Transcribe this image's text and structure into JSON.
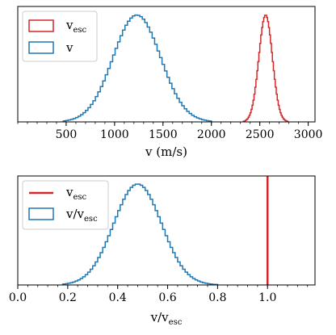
{
  "chart_data": [
    {
      "type": "histogram",
      "xlabel": "v (m/s)",
      "xlim": [
        0,
        3070
      ],
      "ylim": [
        0,
        1.08
      ],
      "yticks": "none",
      "xticks_major": [
        500,
        1000,
        1500,
        2000,
        2500,
        3000
      ],
      "xtick_labels": [
        "500",
        "1000",
        "1500",
        "2000",
        "2500",
        "3000"
      ],
      "minor_tick_step": 100,
      "legend": {
        "placement": "top-left",
        "entries": [
          {
            "label_main": "v",
            "label_sub": "esc",
            "color": "#d62728"
          },
          {
            "label_main": "v",
            "label_sub": "",
            "color": "#1f77b4"
          }
        ]
      },
      "series": [
        {
          "name": "v",
          "color": "#1f77b4",
          "style": "step",
          "distribution": {
            "mean": 1230,
            "std": 245,
            "support": [
              470,
              2000
            ],
            "bins": 60,
            "peak": 1.0
          }
        },
        {
          "name": "v_esc",
          "color": "#d62728",
          "style": "step",
          "distribution": {
            "mean": 2560,
            "std": 70,
            "support": [
              2330,
              2790
            ],
            "bins": 46,
            "peak": 1.0
          }
        }
      ]
    },
    {
      "type": "histogram",
      "xlabel_main": "v/v",
      "xlabel_sub": "esc",
      "xlim": [
        0,
        1.19
      ],
      "ylim": [
        0,
        1.08
      ],
      "yticks": "none",
      "xticks_major": [
        0.0,
        0.2,
        0.4,
        0.6,
        0.8,
        1.0
      ],
      "xtick_labels": [
        "0.0",
        "0.2",
        "0.4",
        "0.6",
        "0.8",
        "1.0"
      ],
      "minor_tick_step": 0.04,
      "legend": {
        "placement": "top-left",
        "entries": [
          {
            "label_main": "v",
            "label_sub": "esc",
            "color": "#d62728",
            "kind": "line"
          },
          {
            "label_main": "v/v",
            "label_sub": "esc",
            "color": "#1f77b4",
            "kind": "patch"
          }
        ]
      },
      "series": [
        {
          "name": "v/v_esc",
          "color": "#1f77b4",
          "style": "step",
          "distribution": {
            "mean": 0.48,
            "std": 0.096,
            "support": [
              0.18,
              0.8
            ],
            "bins": 62,
            "peak": 1.0
          }
        },
        {
          "name": "v_esc",
          "color": "#d62728",
          "style": "vline",
          "x": 1.0
        }
      ]
    }
  ]
}
